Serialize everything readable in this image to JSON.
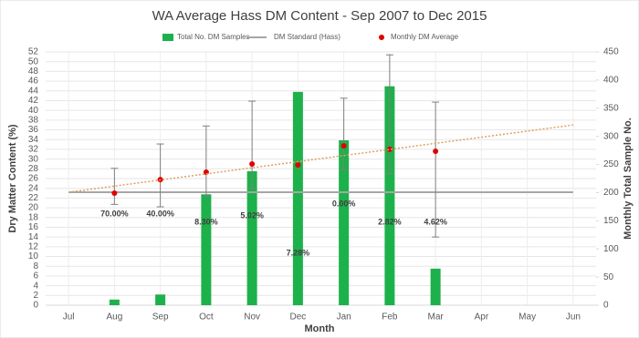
{
  "chart_data": {
    "type": "combo",
    "title": "WA Average Hass DM Content - Sep 2007 to Dec 2015",
    "x_label": "Month",
    "y_label": "Dry Matter Content (%)",
    "y2_label": "Monthly Total Sample No.",
    "categories": [
      "Jul",
      "Aug",
      "Sep",
      "Oct",
      "Nov",
      "Dec",
      "Jan",
      "Feb",
      "Mar",
      "Apr",
      "May",
      "Jun"
    ],
    "ylim": [
      0,
      52
    ],
    "yticks": [
      0,
      2,
      4,
      6,
      8,
      10,
      12,
      14,
      16,
      18,
      20,
      22,
      24,
      26,
      28,
      30,
      32,
      34,
      36,
      38,
      40,
      42,
      44,
      46,
      48,
      50,
      52
    ],
    "y2lim": [
      0,
      450
    ],
    "y2ticks": [
      0,
      50,
      100,
      150,
      200,
      250,
      300,
      350,
      400,
      450
    ],
    "grid": true,
    "legend": "top",
    "series": [
      {
        "name": "Total No. DM Samples",
        "type": "bar",
        "axis": "y2",
        "color": "#1db14b",
        "values": [
          null,
          10,
          19,
          197,
          238,
          379,
          293,
          389,
          65,
          null,
          null,
          null
        ]
      },
      {
        "name": "DM Standard (Hass)",
        "type": "line",
        "color": "#a6a6a6",
        "values": [
          23.2,
          23.2,
          23.2,
          23.2,
          23.2,
          23.2,
          23.2,
          23.2,
          23.2,
          23.2,
          23.2,
          23.2
        ]
      },
      {
        "name": "Monthly DM Average",
        "type": "scatter",
        "color": "#e00000",
        "values": [
          null,
          23.0,
          25.8,
          27.3,
          29.0,
          28.8,
          32.7,
          32.0,
          31.6,
          null,
          null,
          null
        ],
        "error_plus": [
          null,
          5.1,
          7.3,
          9.5,
          12.9,
          null,
          9.8,
          19.4,
          10.1,
          null,
          null,
          null
        ],
        "error_minus": [
          null,
          2.3,
          5.6,
          5.0,
          5.0,
          null,
          5.0,
          5.0,
          17.6,
          null,
          null,
          null
        ]
      }
    ],
    "trendline": {
      "values": [
        23.2,
        37.0
      ],
      "color": "#e0a060"
    },
    "annotations": [
      null,
      "70.00%",
      "40.00%",
      "8.30%",
      "5.02%",
      "7.28%",
      "0.00%",
      "2.82%",
      "4.62%",
      null,
      null,
      null
    ]
  }
}
